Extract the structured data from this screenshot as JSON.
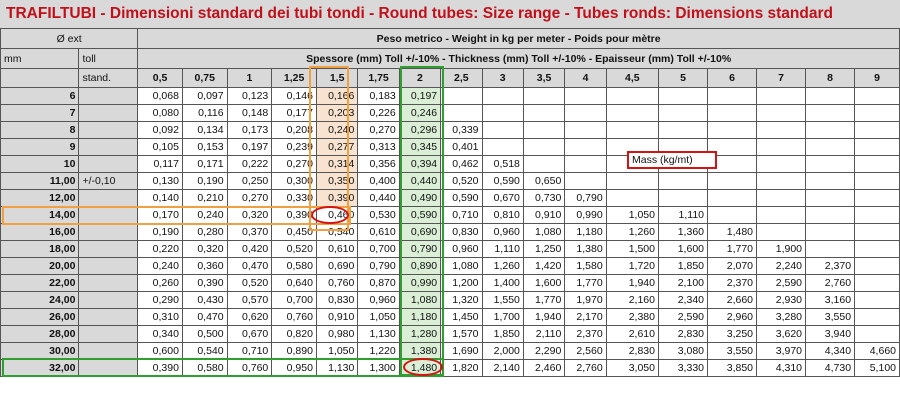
{
  "title": "TRAFILTUBI - Dimensioni standard dei tubi tondi - Round tubes: Size range - Tubes ronds: Dimensions standard",
  "headers": {
    "ext": "Ø ext",
    "mm": "mm",
    "toll": "toll",
    "stand": "stand.",
    "weight": "Peso metrico - Weight in kg per meter - Poids pour mètre",
    "thickness": "Spessore (mm) Toll +/-10% - Thickness (mm) Toll +/-10% - Epaisseur (mm) Toll +/-10%"
  },
  "thicknesses": [
    "0,5",
    "0,75",
    "1",
    "1,25",
    "1,5",
    "1,75",
    "2",
    "2,5",
    "3",
    "3,5",
    "4",
    "4,5",
    "5",
    "6",
    "7",
    "8",
    "9"
  ],
  "rows": [
    {
      "d": "6",
      "toll": "",
      "v": [
        "0,068",
        "0,097",
        "0,123",
        "0,146",
        "0,166",
        "0,183",
        "0,197",
        "",
        "",
        "",
        "",
        "",
        "",
        "",
        "",
        "",
        ""
      ]
    },
    {
      "d": "7",
      "toll": "",
      "v": [
        "0,080",
        "0,116",
        "0,148",
        "0,177",
        "0,203",
        "0,226",
        "0,246",
        "",
        "",
        "",
        "",
        "",
        "",
        "",
        "",
        "",
        ""
      ]
    },
    {
      "d": "8",
      "toll": "",
      "v": [
        "0,092",
        "0,134",
        "0,173",
        "0,208",
        "0,240",
        "0,270",
        "0,296",
        "0,339",
        "",
        "",
        "",
        "",
        "",
        "",
        "",
        "",
        ""
      ]
    },
    {
      "d": "9",
      "toll": "",
      "v": [
        "0,105",
        "0,153",
        "0,197",
        "0,239",
        "0,277",
        "0,313",
        "0,345",
        "0,401",
        "",
        "",
        "",
        "",
        "",
        "",
        "",
        "",
        ""
      ]
    },
    {
      "d": "10",
      "toll": "",
      "v": [
        "0,117",
        "0,171",
        "0,222",
        "0,270",
        "0,314",
        "0,356",
        "0,394",
        "0,462",
        "0,518",
        "",
        "",
        "",
        "",
        "",
        "",
        "",
        ""
      ]
    },
    {
      "d": "11,00",
      "toll": "+/-0,10",
      "v": [
        "0,130",
        "0,190",
        "0,250",
        "0,300",
        "0,350",
        "0,400",
        "0,440",
        "0,520",
        "0,590",
        "0,650",
        "",
        "",
        "",
        "",
        "",
        "",
        ""
      ]
    },
    {
      "d": "12,00",
      "toll": "",
      "v": [
        "0,140",
        "0,210",
        "0,270",
        "0,330",
        "0,390",
        "0,440",
        "0,490",
        "0,590",
        "0,670",
        "0,730",
        "0,790",
        "",
        "",
        "",
        "",
        "",
        ""
      ]
    },
    {
      "d": "14,00",
      "toll": "",
      "v": [
        "0,170",
        "0,240",
        "0,320",
        "0,390",
        "0,460",
        "0,530",
        "0,590",
        "0,710",
        "0,810",
        "0,910",
        "0,990",
        "1,050",
        "1,110",
        "",
        "",
        "",
        ""
      ]
    },
    {
      "d": "16,00",
      "toll": "",
      "v": [
        "0,190",
        "0,280",
        "0,370",
        "0,450",
        "0,540",
        "0,610",
        "0,690",
        "0,830",
        "0,960",
        "1,080",
        "1,180",
        "1,260",
        "1,360",
        "1,480",
        "",
        "",
        ""
      ]
    },
    {
      "d": "18,00",
      "toll": "",
      "v": [
        "0,220",
        "0,320",
        "0,420",
        "0,520",
        "0,610",
        "0,700",
        "0,790",
        "0,960",
        "1,110",
        "1,250",
        "1,380",
        "1,500",
        "1,600",
        "1,770",
        "1,900",
        "",
        ""
      ]
    },
    {
      "d": "20,00",
      "toll": "",
      "v": [
        "0,240",
        "0,360",
        "0,470",
        "0,580",
        "0,690",
        "0,790",
        "0,890",
        "1,080",
        "1,260",
        "1,420",
        "1,580",
        "1,720",
        "1,850",
        "2,070",
        "2,240",
        "2,370",
        ""
      ]
    },
    {
      "d": "22,00",
      "toll": "",
      "v": [
        "0,260",
        "0,390",
        "0,520",
        "0,640",
        "0,760",
        "0,870",
        "0,990",
        "1,200",
        "1,400",
        "1,600",
        "1,770",
        "1,940",
        "2,100",
        "2,370",
        "2,590",
        "2,760",
        ""
      ]
    },
    {
      "d": "24,00",
      "toll": "",
      "v": [
        "0,290",
        "0,430",
        "0,570",
        "0,700",
        "0,830",
        "0,960",
        "1,080",
        "1,320",
        "1,550",
        "1,770",
        "1,970",
        "2,160",
        "2,340",
        "2,660",
        "2,930",
        "3,160",
        ""
      ]
    },
    {
      "d": "26,00",
      "toll": "",
      "v": [
        "0,310",
        "0,470",
        "0,620",
        "0,760",
        "0,910",
        "1,050",
        "1,180",
        "1,450",
        "1,700",
        "1,940",
        "2,170",
        "2,380",
        "2,590",
        "2,960",
        "3,280",
        "3,550",
        ""
      ]
    },
    {
      "d": "28,00",
      "toll": "",
      "v": [
        "0,340",
        "0,500",
        "0,670",
        "0,820",
        "0,980",
        "1,130",
        "1,280",
        "1,570",
        "1,850",
        "2,110",
        "2,370",
        "2,610",
        "2,830",
        "3,250",
        "3,620",
        "3,940",
        ""
      ]
    },
    {
      "d": "30,00",
      "toll": "",
      "v": [
        "0,600",
        "0,540",
        "0,710",
        "0,890",
        "1,050",
        "1,220",
        "1,380",
        "1,690",
        "2,000",
        "2,290",
        "2,560",
        "2,830",
        "3,080",
        "3,550",
        "3,970",
        "4,340",
        "4,660"
      ]
    },
    {
      "d": "32,00",
      "toll": "",
      "v": [
        "0,390",
        "0,580",
        "0,760",
        "0,950",
        "1,130",
        "1,300",
        "1,480",
        "1,820",
        "2,140",
        "2,460",
        "2,760",
        "3,050",
        "3,330",
        "3,850",
        "4,310",
        "4,730",
        "5,100"
      ]
    }
  ],
  "mass_label": "Mass (kg/mt)",
  "colors": {
    "title": "#c0101a",
    "header_bg": "#d9d9d9",
    "highlight_orange": "#f0a040",
    "highlight_green": "#2fa02f",
    "annotation_red": "#d21414"
  }
}
